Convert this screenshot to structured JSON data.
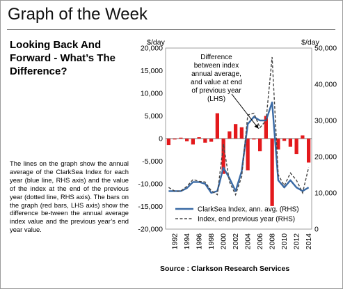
{
  "page": {
    "title": "Graph of the Week",
    "heading": "Looking Back And Forward - What’s The Difference?",
    "description": "The lines on the graph show the annual average of the ClarkSea Index for each year (blue line, RHS axis) and the value of the index at the end of the previous year (dotted line, RHS axis). The bars on the graph (red bars, LHS axis) show the difference be-tween the annual average index value and the previous year’s end year value.",
    "source": "Source : Clarkson Research Services"
  },
  "chart_data": {
    "type": "bar",
    "left_unit": "$/day",
    "right_unit": "$/day",
    "years": [
      1991,
      1992,
      1993,
      1994,
      1995,
      1996,
      1997,
      1998,
      1999,
      2000,
      2001,
      2002,
      2003,
      2004,
      2005,
      2006,
      2007,
      2008,
      2009,
      2010,
      2011,
      2012,
      2013,
      2014
    ],
    "x_tick_labels": [
      "1992",
      "1994",
      "1996",
      "1998",
      "2000",
      "2002",
      "2004",
      "2006",
      "2008",
      "2010",
      "2012",
      "2014"
    ],
    "left_axis": {
      "min": -20000,
      "max": 20000,
      "step": 5000,
      "tick_labels": [
        "20,000",
        "15,000",
        "10,000",
        "5,000",
        "0",
        "-5,000",
        "-10,000",
        "-15,000",
        "-20,000"
      ]
    },
    "right_axis": {
      "min": 0,
      "max": 50000,
      "step": 10000,
      "tick_labels": [
        "50,000",
        "40,000",
        "30,000",
        "20,000",
        "10,000",
        "0"
      ]
    },
    "series": [
      {
        "name": "",
        "kind": "bar",
        "axis": "left",
        "color": "#e3191c",
        "values": [
          -1400,
          -200,
          200,
          -600,
          -1300,
          300,
          -900,
          -700,
          5600,
          -7800,
          1600,
          3200,
          2500,
          -7000,
          -200,
          -2800,
          5000,
          -14900,
          -2400,
          -500,
          -1800,
          -3400,
          700,
          -5300
        ]
      },
      {
        "name": "ClarkSea Index, ann. avg. (RHS)",
        "kind": "line",
        "axis": "right",
        "color": "#3a6aa5",
        "values": [
          10500,
          10500,
          10500,
          11300,
          13000,
          13000,
          12500,
          10000,
          10500,
          17000,
          14000,
          10500,
          16000,
          29000,
          31000,
          30000,
          30000,
          35000,
          13500,
          11500,
          13500,
          11500,
          10500,
          11500
        ]
      },
      {
        "name": "Index, end previous year (RHS)",
        "kind": "line",
        "axis": "right",
        "color": "#444444",
        "values": [
          11500,
          10500,
          10500,
          11800,
          13700,
          13200,
          13000,
          10600,
          9500,
          23500,
          13000,
          9500,
          14500,
          31500,
          32000,
          28000,
          30000,
          47500,
          15000,
          12000,
          15500,
          13500,
          10000,
          17000
        ]
      }
    ],
    "annotation": {
      "lines": [
        "Difference",
        "between index",
        "annual average,",
        "and value at end",
        "of previous year",
        "(LHS)"
      ],
      "arrow_to": {
        "year": 2006,
        "value": 2200
      }
    },
    "legend": {
      "placement": "bottom-center",
      "entries": [
        "ClarkSea Index, ann. avg. (RHS)",
        "Index, end previous year (RHS)"
      ]
    }
  }
}
